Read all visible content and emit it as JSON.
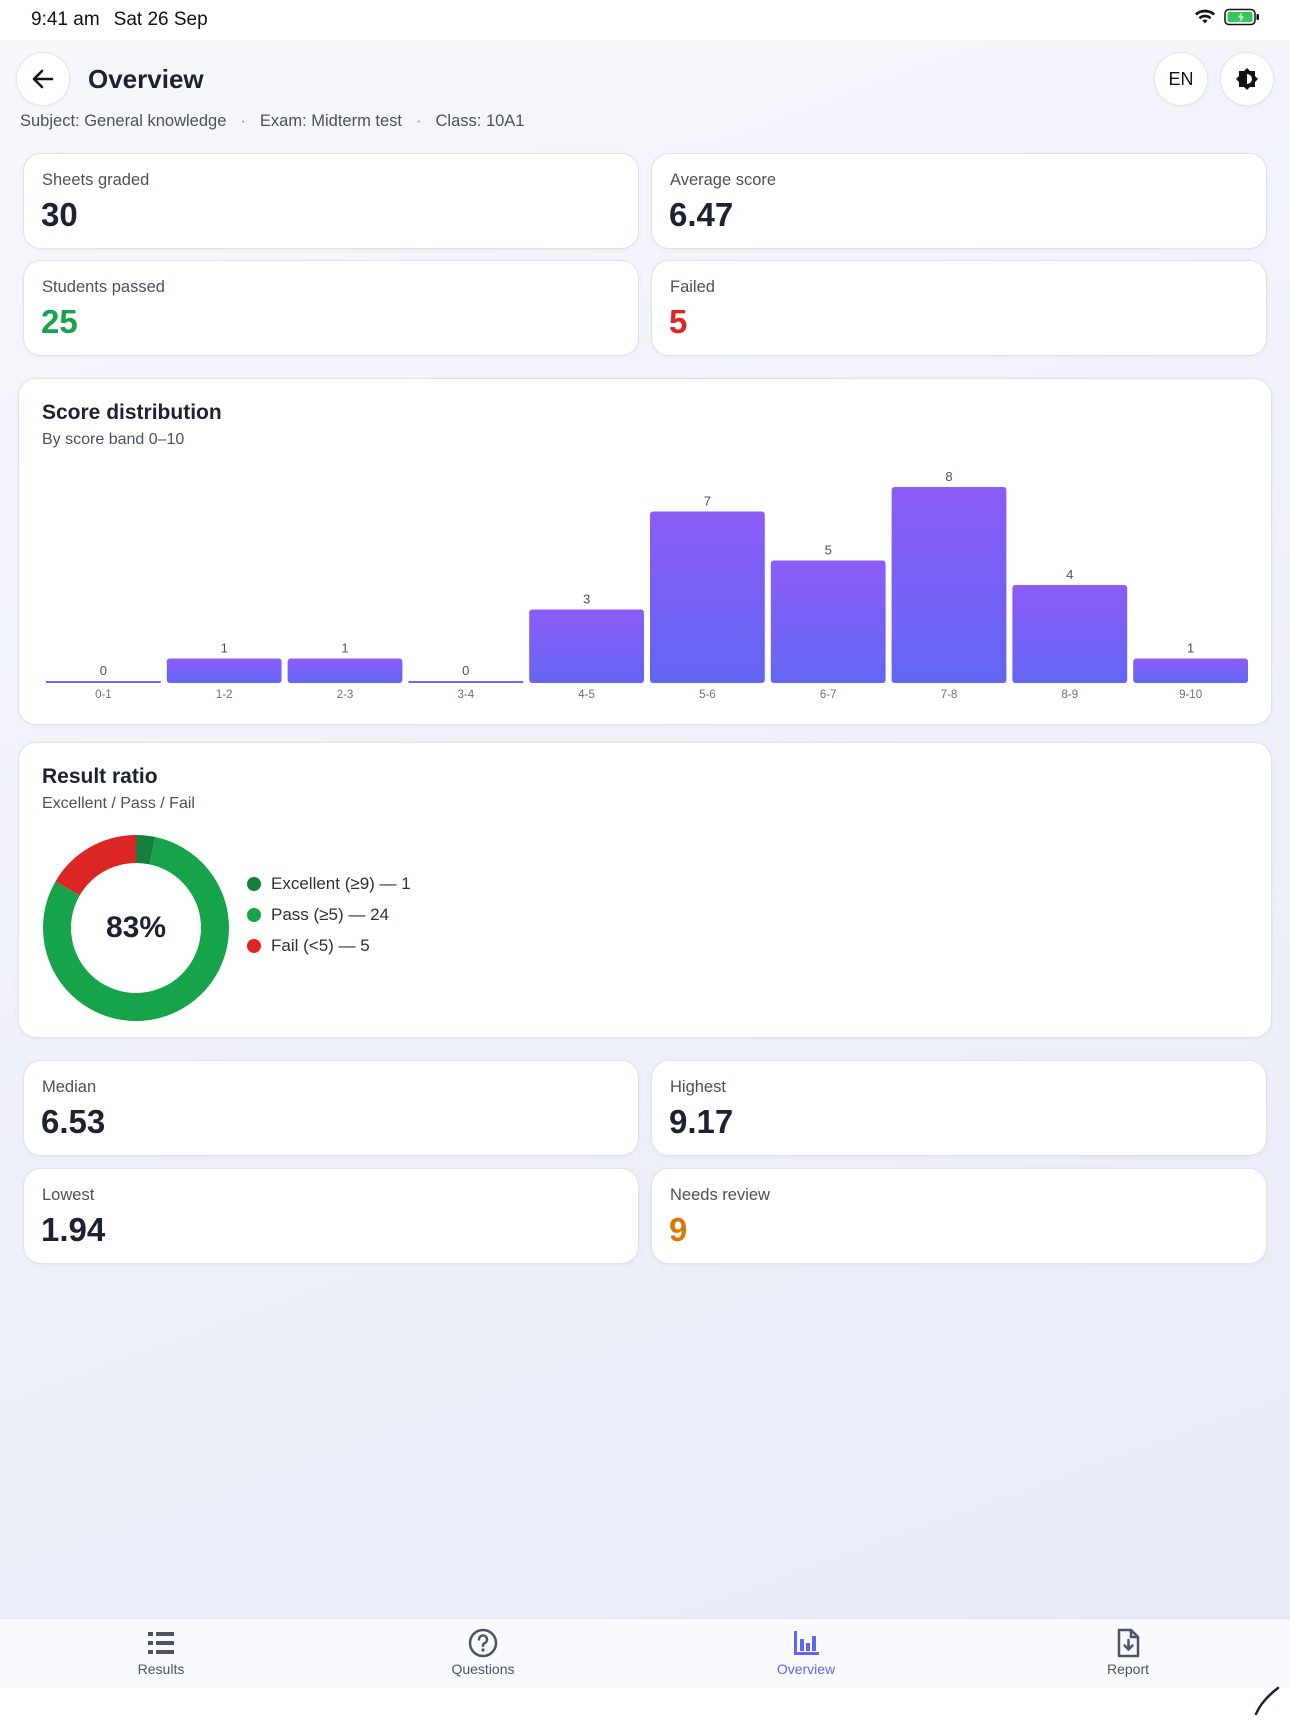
{
  "status": {
    "time": "9:41 am",
    "date": "Sat 26 Sep"
  },
  "header": {
    "title": "Overview",
    "lang_label": "EN"
  },
  "meta": {
    "subject": "Subject: General knowledge",
    "exam": "Exam: Midterm test",
    "class": "Class: 10A1",
    "separator": "·"
  },
  "stats_top": [
    {
      "label": "Sheets graded",
      "value": "30"
    },
    {
      "label": "Average score",
      "value": "6.47"
    },
    {
      "label": "Students passed",
      "value": "25"
    },
    {
      "label": "Failed",
      "value": "5"
    }
  ],
  "distribution": {
    "title": "Score distribution",
    "subtitle": "By score band 0–10"
  },
  "ratio": {
    "title": "Result ratio",
    "subtitle": "Excellent / Pass / Fail",
    "center_label": "83%",
    "legend": [
      {
        "label": "Excellent (≥9) — 1",
        "color": "#15803d",
        "value": 1
      },
      {
        "label": "Pass (≥5) — 24",
        "color": "#16a34a",
        "value": 24
      },
      {
        "label": "Fail (<5) — 5",
        "color": "#dc2626",
        "value": 5
      }
    ]
  },
  "stats_bottom": [
    {
      "label": "Median",
      "value": "6.53"
    },
    {
      "label": "Highest",
      "value": "9.17"
    },
    {
      "label": "Lowest",
      "value": "1.94"
    },
    {
      "label": "Needs review",
      "value": "9"
    }
  ],
  "colors": {
    "pass": "#16a34a",
    "fail": "#dc2626",
    "review": "#d97706",
    "bar_top": "#8b5cf6",
    "bar_bottom": "#6366f1",
    "active_tab": "#6366f1"
  },
  "tabs": [
    {
      "label": "Results",
      "icon": "list-icon"
    },
    {
      "label": "Questions",
      "icon": "question-circle-icon"
    },
    {
      "label": "Overview",
      "icon": "bar-chart-icon"
    },
    {
      "label": "Report",
      "icon": "file-download-icon"
    }
  ],
  "active_tab": "Overview",
  "chart_data": {
    "type": "bar",
    "title": "Score distribution",
    "subtitle": "By score band 0–10",
    "categories": [
      "0-1",
      "1-2",
      "2-3",
      "3-4",
      "4-5",
      "5-6",
      "6-7",
      "7-8",
      "8-9",
      "9-10"
    ],
    "values": [
      0,
      1,
      1,
      0,
      3,
      7,
      5,
      8,
      4,
      1
    ],
    "ylim": [
      0,
      8
    ],
    "grid": false
  }
}
